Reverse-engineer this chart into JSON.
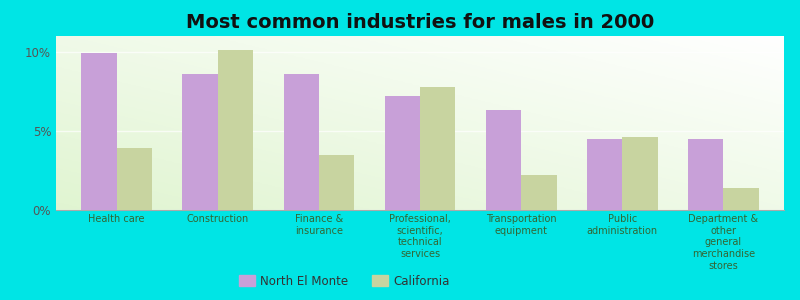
{
  "title": "Most common industries for males in 2000",
  "categories": [
    "Health care",
    "Construction",
    "Finance &\ninsurance",
    "Professional,\nscientific,\ntechnical\nservices",
    "Transportation\nequipment",
    "Public\nadministration",
    "Department &\nother\ngeneral\nmerchandise\nstores"
  ],
  "north_el_monte": [
    9.9,
    8.6,
    8.6,
    7.2,
    6.3,
    4.5,
    4.5
  ],
  "california": [
    3.9,
    10.1,
    3.5,
    7.8,
    2.2,
    4.6,
    1.4
  ],
  "color_nem": "#c8a0d8",
  "color_ca": "#c8d4a0",
  "background_outer": "#00e5e5",
  "ylim": [
    0,
    11
  ],
  "yticks": [
    0,
    5,
    10
  ],
  "ytick_labels": [
    "0%",
    "5%",
    "10%"
  ],
  "bar_width": 0.35,
  "title_fontsize": 14
}
